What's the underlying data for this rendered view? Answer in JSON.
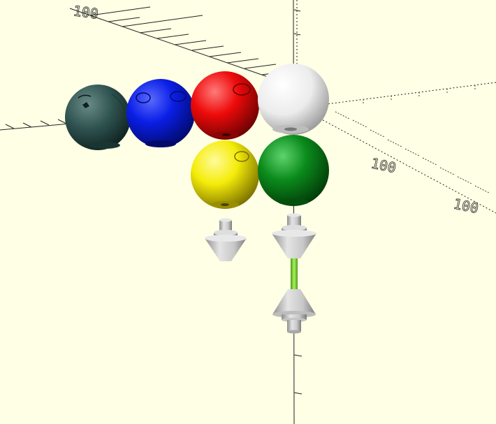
{
  "viewer": {
    "background_color": "#ffffe5",
    "axis_color": "#222222",
    "axis_tick_labels": [
      "100",
      "100",
      "100"
    ]
  },
  "model": {
    "spheres": [
      {
        "name": "dark-slate-sphere",
        "color": "#2f5350"
      },
      {
        "name": "blue-sphere",
        "color": "#0a1ee6"
      },
      {
        "name": "red-sphere",
        "color": "#ee0a0a"
      },
      {
        "name": "white-sphere",
        "color": "#f2f2f2"
      },
      {
        "name": "yellow-sphere",
        "color": "#f5ec0a"
      },
      {
        "name": "green-sphere",
        "color": "#0b8b1c"
      }
    ],
    "pegs": [
      {
        "name": "small-cone-peg",
        "color": "#cfcfcf"
      },
      {
        "name": "connector-peg-top",
        "color": "#cfcfcf"
      },
      {
        "name": "connector-rod",
        "color": "#8ee53a"
      },
      {
        "name": "connector-peg-bottom",
        "color": "#cfcfcf"
      }
    ]
  }
}
